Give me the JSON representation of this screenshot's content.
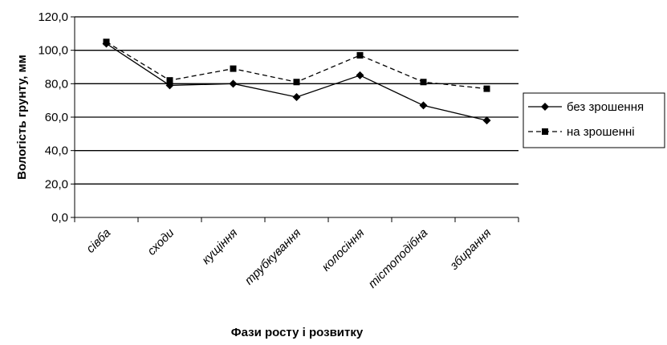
{
  "chart_data": {
    "type": "line",
    "categories": [
      "сівба",
      "сходи",
      "кущіння",
      "трубкування",
      "колосіння",
      "тістоподібна",
      "збирання"
    ],
    "series": [
      {
        "name": "без зрошення",
        "values": [
          104,
          79,
          80,
          72,
          85,
          67,
          58
        ],
        "color": "#000000",
        "dash": "solid",
        "marker": "diamond"
      },
      {
        "name": "на зрошенні",
        "values": [
          105,
          82,
          89,
          81,
          97,
          81,
          77
        ],
        "color": "#000000",
        "dash": "dashed",
        "marker": "square"
      }
    ],
    "yticks": [
      "0,0",
      "20,0",
      "40,0",
      "60,0",
      "80,0",
      "100,0",
      "120,0"
    ],
    "ylim": [
      0,
      120
    ],
    "xlabel": "Фази росту і розвитку",
    "ylabel": "Вологість грунту, мм",
    "grid": true,
    "legend_position": "right"
  }
}
